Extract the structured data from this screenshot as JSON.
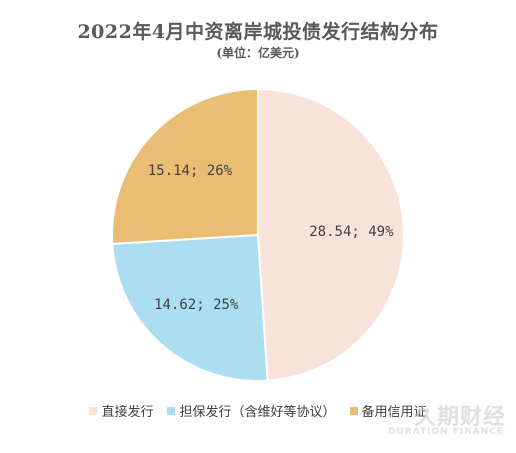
{
  "chart_data": {
    "type": "pie",
    "title": "2022年4月中资离岸城投债发行结构分布",
    "subtitle": "(单位：亿美元)",
    "slices": [
      {
        "name": "直接发行",
        "value": 28.54,
        "percent": "49%",
        "label": "28.54; 49%",
        "color": "#f8e3da"
      },
      {
        "name": "担保发行（含维好等协议）",
        "value": 14.62,
        "percent": "25%",
        "label": "14.62; 25%",
        "color": "#abdef1"
      },
      {
        "name": "备用信用证",
        "value": 15.14,
        "percent": "26%",
        "label": "15.14; 26%",
        "color": "#eabd74"
      }
    ],
    "legend_position": "bottom"
  },
  "watermark": {
    "text": "久期财经",
    "subtext": "DURATION FINANCE"
  }
}
